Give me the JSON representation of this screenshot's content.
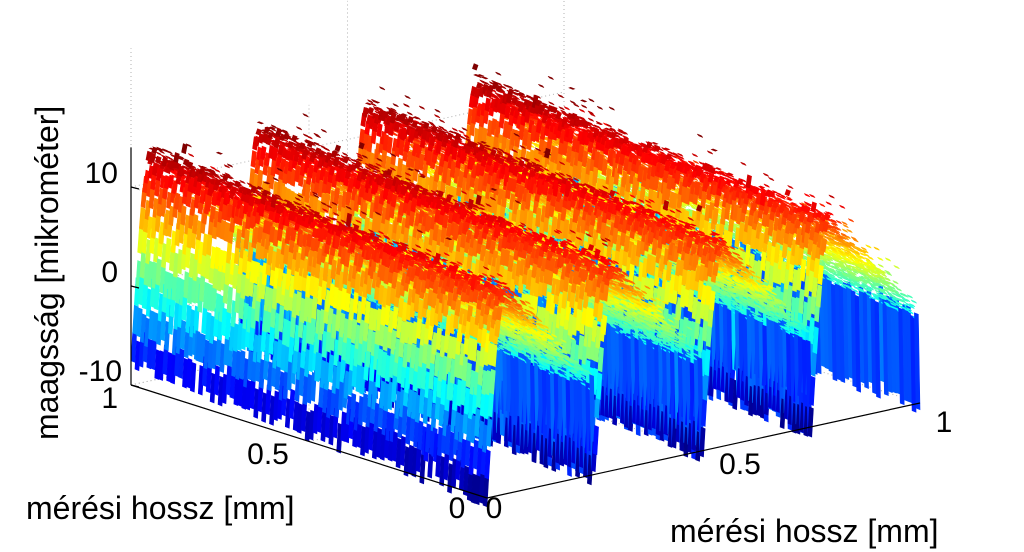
{
  "chart_data": {
    "type": "surface",
    "title": "",
    "xlabel": "mérési hossz [mm]",
    "ylabel": "mérési hossz [mm]",
    "zlabel": "maagsság [mikrométer]",
    "xlim": [
      0,
      1
    ],
    "ylim": [
      0,
      1
    ],
    "zlim": [
      -10,
      14
    ],
    "x_ticks": [
      "0",
      "0.5",
      "1"
    ],
    "y_ticks": [
      "0",
      "0.5",
      "1"
    ],
    "z_ticks": [
      "-10",
      "0",
      "10"
    ],
    "colormap": "jet",
    "grid": true,
    "profile": {
      "description_of_ridges_along_x": "periodic",
      "ridge_count": 4,
      "valley_min": -9,
      "ridge_max": 12
    }
  }
}
